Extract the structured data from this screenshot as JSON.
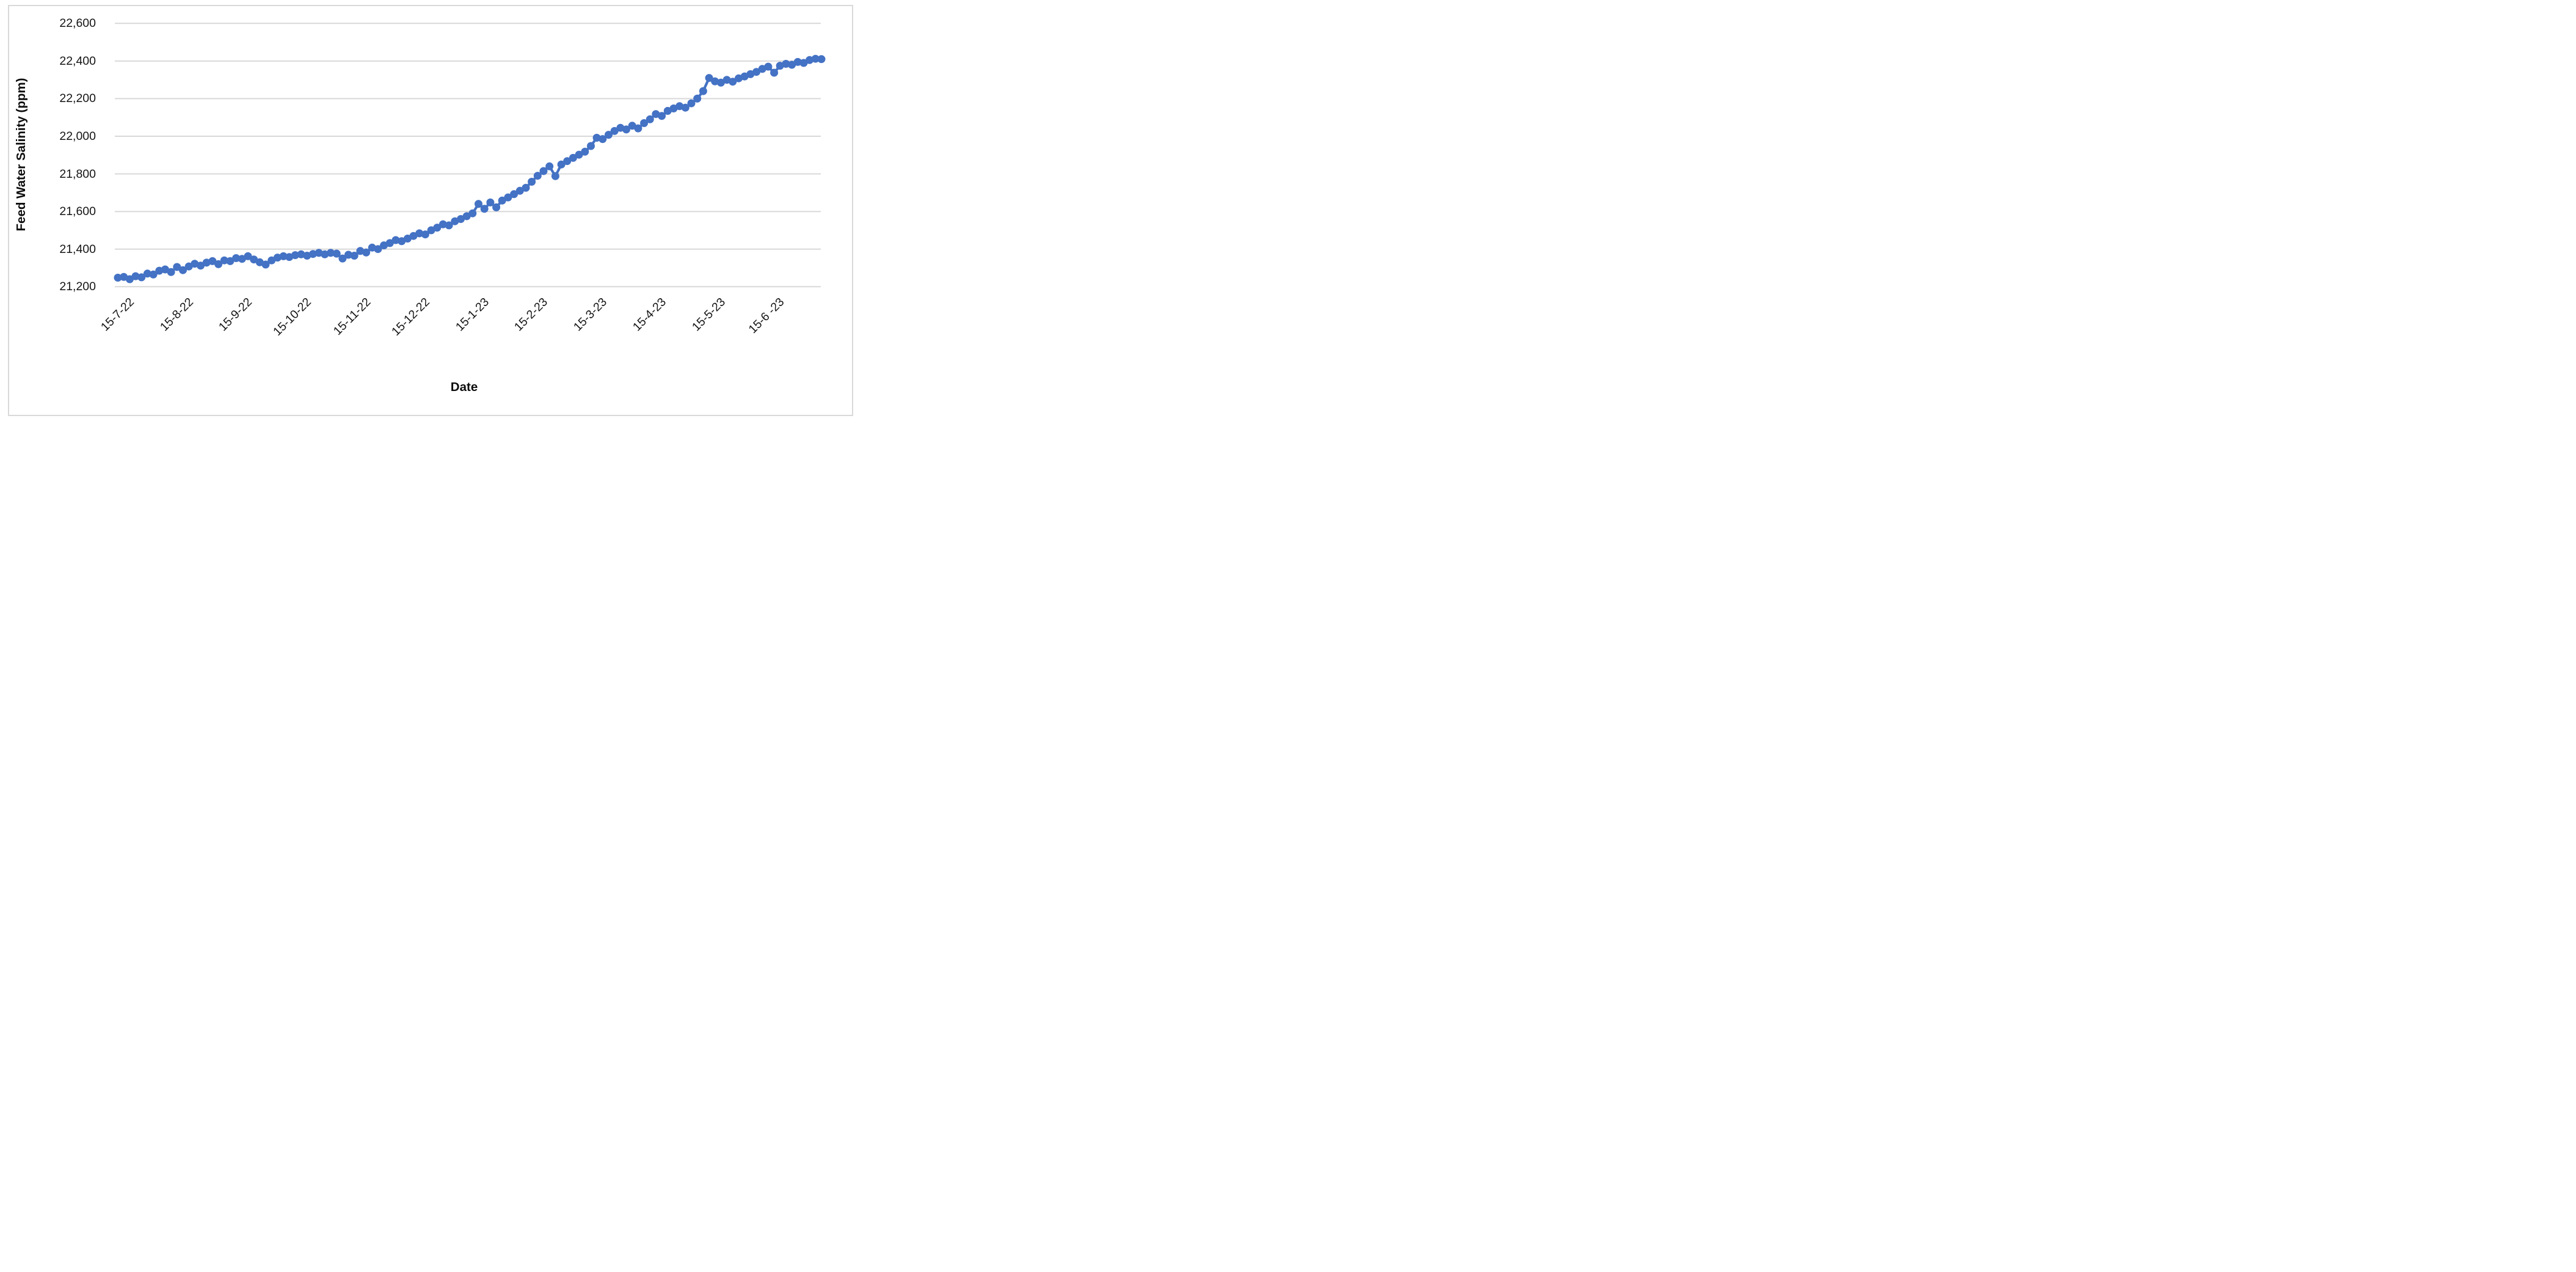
{
  "chart": {
    "y_axis_title": "Feed Water Salinity (ppm)",
    "x_axis_title": "Date",
    "line_color": "#4472C4",
    "gridline_color": "#D9D9D9",
    "frame_border_color": "#D9D9D9",
    "background_color": "#FFFFFF",
    "y_tick_labels": [
      "22,600",
      "22,400",
      "22,200",
      "22,000",
      "21,800",
      "21,600",
      "21,400",
      "21,200"
    ]
  },
  "chart_data": {
    "type": "line",
    "title": "",
    "xlabel": "Date",
    "ylabel": "Feed Water Salinity (ppm)",
    "legend": "none",
    "grid": "horizontal",
    "marker": "circle",
    "ylim": [
      21200,
      22600
    ],
    "y_tick_step": 200,
    "x_tick_labels": [
      "15-7-22",
      "15-8-22",
      "15-9-22",
      "15-10-22",
      "15-11-22",
      "15-12-22",
      "15-1-23",
      "15-2-23",
      "15-3-23",
      "15-4-23",
      "15-5-23",
      "15-6 -23"
    ],
    "points_per_tick": 10,
    "series": [
      {
        "name": "Feed Water Salinity",
        "values": [
          21248,
          21252,
          21240,
          21256,
          21250,
          21270,
          21265,
          21285,
          21292,
          21278,
          21305,
          21288,
          21308,
          21322,
          21312,
          21328,
          21336,
          21320,
          21340,
          21336,
          21352,
          21348,
          21362,
          21345,
          21330,
          21318,
          21340,
          21355,
          21362,
          21358,
          21368,
          21372,
          21365,
          21374,
          21380,
          21372,
          21380,
          21376,
          21350,
          21370,
          21365,
          21390,
          21382,
          21408,
          21400,
          21420,
          21432,
          21448,
          21442,
          21456,
          21470,
          21484,
          21478,
          21500,
          21514,
          21532,
          21526,
          21548,
          21560,
          21575,
          21590,
          21640,
          21614,
          21648,
          21622,
          21658,
          21675,
          21692,
          21710,
          21726,
          21758,
          21790,
          21815,
          21840,
          21788,
          21850,
          21868,
          21885,
          21902,
          21918,
          21948,
          21992,
          21985,
          22008,
          22028,
          22045,
          22036,
          22056,
          22042,
          22070,
          22090,
          22118,
          22108,
          22135,
          22148,
          22160,
          22152,
          22175,
          22200,
          22240,
          22310,
          22292,
          22285,
          22300,
          22290,
          22308,
          22318,
          22330,
          22342,
          22358,
          22370,
          22338,
          22375,
          22385,
          22380,
          22395,
          22390,
          22405,
          22412,
          22410
        ]
      }
    ]
  }
}
